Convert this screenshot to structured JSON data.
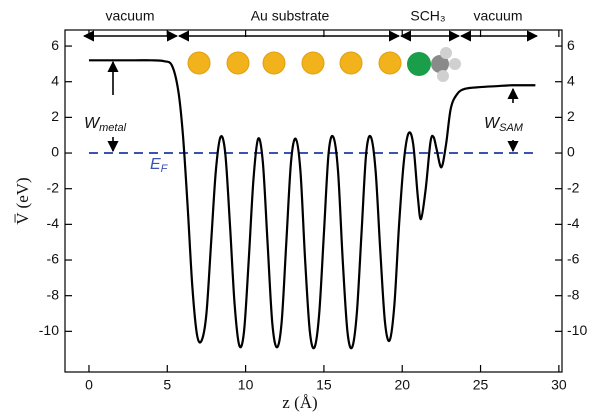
{
  "chart_data": {
    "type": "line",
    "x_label": "z (Å)",
    "y_label": "V̅ (eV)",
    "xlim": [
      -1.53,
      30.2
    ],
    "ylim": [
      -12.28,
      6.9
    ],
    "y2lim": [
      -12.28,
      6.9
    ],
    "xticks": [
      0,
      5,
      10,
      15,
      20,
      25,
      30
    ],
    "yticks": [
      -10,
      -8,
      -6,
      -4,
      -2,
      0,
      2,
      4,
      6
    ],
    "y2ticks": [
      -10,
      -8,
      -6,
      -4,
      -2,
      0,
      2,
      4,
      6
    ],
    "annotations": {
      "regions": [
        "vacuum",
        "Au substrate",
        "SCH₃",
        "vacuum"
      ],
      "w_metal": {
        "text": "W",
        "sub": "metal"
      },
      "w_sam": {
        "text": "W",
        "sub": "SAM"
      }
    },
    "ef_line": {
      "value": 0,
      "color": "#3a52b0",
      "label": {
        "text": "E",
        "sub": "F"
      }
    },
    "series": [
      {
        "color": "#000000",
        "x": [
          0,
          1,
          2,
          3,
          4,
          4.8,
          5.3,
          5.7,
          6.0,
          6.3,
          6.6,
          6.9,
          7.2,
          7.5,
          7.8,
          8.1,
          8.4,
          8.7,
          9.0,
          9.3,
          9.6,
          9.9,
          10.2,
          10.5,
          10.8,
          11.1,
          11.4,
          11.7,
          12.0,
          12.3,
          12.6,
          12.9,
          13.2,
          13.5,
          13.8,
          14.1,
          14.4,
          14.7,
          15.0,
          15.3,
          15.6,
          15.9,
          16.2,
          16.5,
          16.8,
          17.1,
          17.4,
          17.7,
          18.0,
          18.3,
          18.6,
          18.9,
          19.2,
          19.5,
          19.8,
          20.1,
          20.4,
          20.7,
          21.0,
          21.2,
          21.5,
          21.8,
          22.0,
          22.2,
          22.5,
          22.8,
          23.1,
          23.5,
          24,
          25,
          26,
          27,
          28.5
        ],
        "values": [
          5.2,
          5.2,
          5.2,
          5.2,
          5.2,
          5.15,
          4.9,
          3.5,
          1.0,
          -3,
          -7.5,
          -10.2,
          -10.5,
          -9,
          -5,
          -1,
          0.9,
          0,
          -4,
          -8.5,
          -10.8,
          -10,
          -6,
          -1.5,
          0.8,
          -0.5,
          -5,
          -9.5,
          -10.9,
          -9.5,
          -5,
          -0.5,
          0.8,
          -1,
          -6,
          -10,
          -10.9,
          -9,
          -4.5,
          0,
          0.9,
          -1,
          -6,
          -10,
          -10.9,
          -9,
          -4.5,
          0,
          0.9,
          -1,
          -5.5,
          -9.5,
          -10.5,
          -8.5,
          -4,
          -0.5,
          1.1,
          0.5,
          -2.5,
          -3.7,
          -2,
          0.6,
          0.9,
          0.2,
          -0.8,
          0.5,
          2.5,
          3.3,
          3.6,
          3.7,
          3.75,
          3.8,
          3.8
        ]
      }
    ]
  }
}
